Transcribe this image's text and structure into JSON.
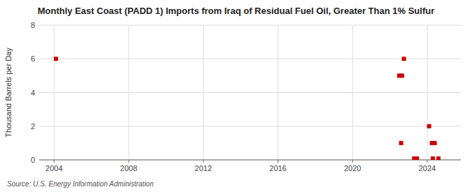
{
  "chart_data": {
    "type": "scatter",
    "title": "Monthly East Coast (PADD 1) Imports from Iraq of Residual Fuel Oil, Greater Than 1% Sulfur",
    "ylabel": "Thousand Barrels per Day",
    "source": "Source: U.S. Energy Information Administration",
    "x": [
      2004.1,
      2022.75,
      2022.5,
      2022.65,
      2022.6,
      2023.3,
      2023.45,
      2024.1,
      2024.25,
      2024.4,
      2024.3,
      2024.6
    ],
    "values": [
      6.0,
      6.0,
      5.0,
      5.0,
      1.0,
      0.08,
      0.08,
      2.0,
      1.0,
      1.0,
      0.08,
      0.08
    ],
    "color": "#cc0000",
    "marker": "square",
    "xlim": [
      2003.2,
      2025.8
    ],
    "xticks": [
      2004,
      2008,
      2012,
      2016,
      2020,
      2024
    ],
    "ylim": [
      0,
      8
    ],
    "yticks": [
      0,
      2,
      4,
      6,
      8
    ],
    "grid": true
  }
}
